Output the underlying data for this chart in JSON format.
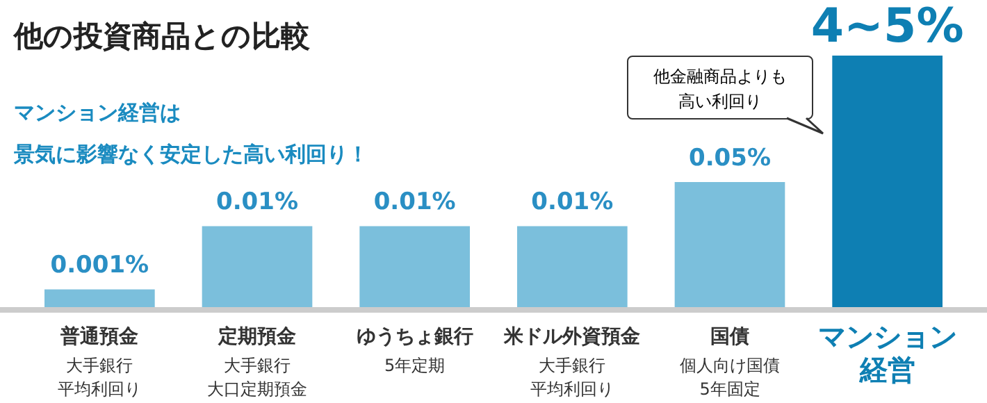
{
  "chart_data": {
    "type": "bar",
    "title": "他の投資商品との比較",
    "subtitle": "マンション経営は",
    "categories": [
      "普通預金",
      "定期預金",
      "ゆうちょ銀行",
      "米ドル外資預金",
      "国債",
      "マンション経営"
    ],
    "values": [
      0.001,
      0.01,
      0.01,
      0.01,
      0.05,
      5
    ],
    "colors": [
      "#7bbfdc",
      "#7bbfdc",
      "#7bbfdc",
      "#7bbfdc",
      "#7bbfdc",
      "#0e7fb3"
    ],
    "log": true,
    "ylim": [
      0.0005,
      5
    ],
    "value_labels": [
      "0.001%",
      "0.01%",
      "0.01%",
      "0.01%",
      "0.05%",
      "4~5%"
    ],
    "annotations": [
      "景気に影響なく安定した高い利回り！",
      "他金融商品よりも高い利回り",
      "大手銀行",
      "平均利回り",
      "大手銀行",
      "大口定期預金",
      "5年定期",
      "大手銀行",
      "平均利回り",
      "個人向け国債",
      "5年固定"
    ],
    "legend": false
  }
}
